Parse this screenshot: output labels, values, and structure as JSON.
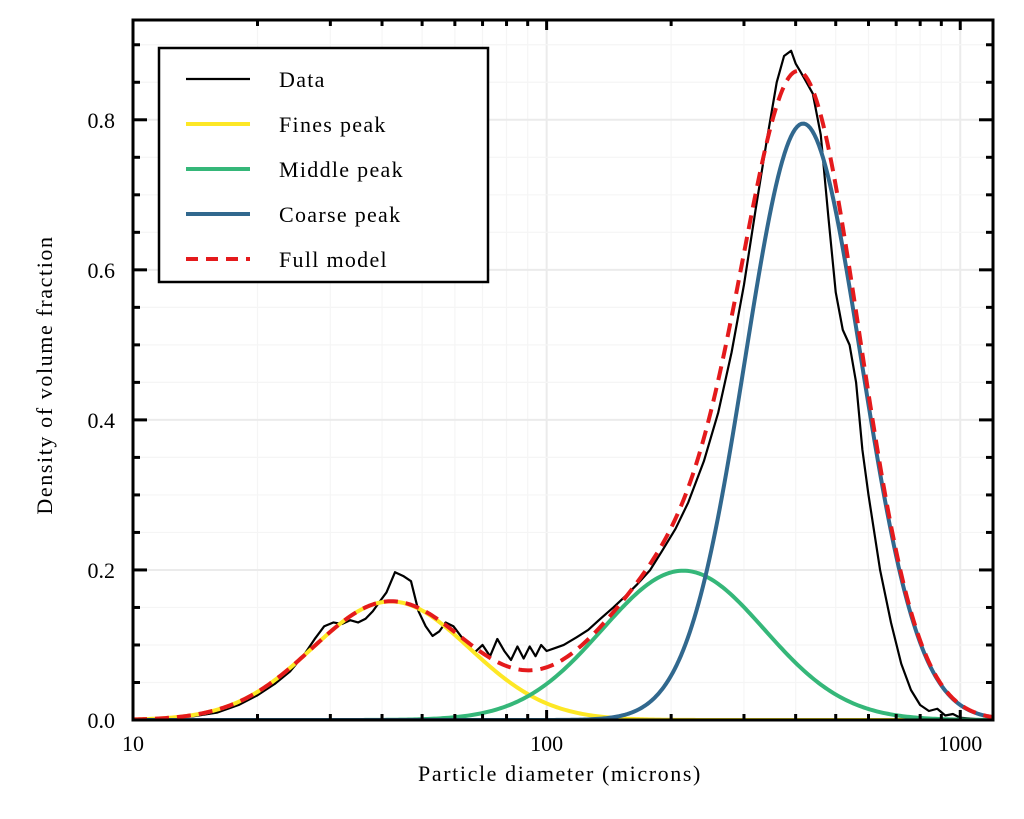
{
  "chart_data": {
    "type": "line",
    "title": "",
    "xlabel": "Particle diameter (microns)",
    "ylabel": "Density of volume fraction",
    "xscale": "log",
    "xlim": [
      10,
      1200
    ],
    "ylim": [
      0,
      0.933
    ],
    "x_ticks": [
      10,
      100,
      1000
    ],
    "x_tick_labels": [
      "10",
      "100",
      "1000"
    ],
    "y_ticks": [
      0.0,
      0.2,
      0.4,
      0.6,
      0.8
    ],
    "y_tick_labels": [
      "0.0",
      "0.2",
      "0.4",
      "0.6",
      "0.8"
    ],
    "grid": true,
    "legend_position": "top-left",
    "series": [
      {
        "name": "Data",
        "color": "#000000",
        "style": "solid",
        "x": [
          10,
          12,
          14,
          16,
          18,
          20,
          22,
          24,
          26,
          27.5,
          29,
          30.5,
          32,
          33.5,
          35,
          36.5,
          38,
          39.5,
          41,
          43,
          45,
          47,
          49,
          51,
          53,
          55,
          57,
          59.5,
          62,
          64.5,
          67,
          70,
          73,
          76,
          79,
          82,
          85,
          88,
          91,
          94,
          97,
          100,
          105,
          110,
          118,
          126,
          135,
          145,
          155,
          165,
          178,
          190,
          205,
          220,
          240,
          260,
          280,
          300,
          320,
          340,
          360,
          375,
          390,
          400,
          410,
          420,
          440,
          460,
          480,
          500,
          520,
          540,
          560,
          580,
          600,
          640,
          680,
          720,
          760,
          800,
          840,
          880,
          920,
          960,
          1000,
          1050,
          1100,
          1200
        ],
        "y": [
          0.0,
          0.002,
          0.005,
          0.01,
          0.02,
          0.033,
          0.048,
          0.065,
          0.088,
          0.108,
          0.125,
          0.13,
          0.128,
          0.133,
          0.13,
          0.135,
          0.145,
          0.158,
          0.17,
          0.197,
          0.192,
          0.185,
          0.145,
          0.125,
          0.112,
          0.118,
          0.13,
          0.125,
          0.112,
          0.098,
          0.09,
          0.1,
          0.085,
          0.108,
          0.092,
          0.08,
          0.098,
          0.082,
          0.098,
          0.085,
          0.1,
          0.092,
          0.096,
          0.1,
          0.11,
          0.12,
          0.135,
          0.15,
          0.165,
          0.18,
          0.2,
          0.225,
          0.255,
          0.29,
          0.345,
          0.41,
          0.49,
          0.58,
          0.68,
          0.77,
          0.85,
          0.885,
          0.892,
          0.875,
          0.865,
          0.855,
          0.835,
          0.78,
          0.67,
          0.57,
          0.52,
          0.5,
          0.45,
          0.36,
          0.3,
          0.2,
          0.13,
          0.075,
          0.04,
          0.02,
          0.012,
          0.015,
          0.006,
          0.008,
          0.003,
          0.002,
          0.001,
          0.0
        ]
      },
      {
        "name": "Fines peak",
        "color": "#fde725",
        "style": "solid",
        "model": {
          "peak_height": 0.158,
          "center": 42,
          "log10_sigma": 0.19
        }
      },
      {
        "name": "Middle peak",
        "color": "#35b779",
        "style": "solid",
        "model": {
          "peak_height": 0.199,
          "center": 214,
          "log10_sigma": 0.196
        }
      },
      {
        "name": "Coarse peak",
        "color": "#31688e",
        "style": "solid",
        "model": {
          "peak_height": 0.795,
          "center": 417,
          "log10_sigma": 0.14
        }
      },
      {
        "name": "Full model",
        "color": "#e41a1c",
        "style": "dashed",
        "model": {
          "sum_of": [
            "Fines peak",
            "Middle peak",
            "Coarse peak"
          ]
        }
      }
    ]
  }
}
